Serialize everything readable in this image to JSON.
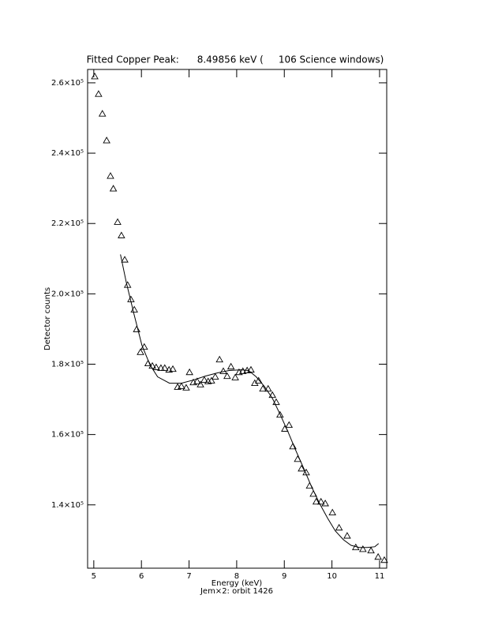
{
  "chart_data": {
    "type": "scatter",
    "title": "Fitted Copper Peak:      8.49856 keV (     106 Science windows)",
    "x_label": "Energy (keV)",
    "subtitle": "Jem×2: orbit 1426",
    "y_label": "Detector counts",
    "xlim": [
      4.87,
      11.15
    ],
    "xticks": [
      5,
      6,
      7,
      8,
      9,
      10,
      11
    ],
    "ylim": [
      122000,
      263800
    ],
    "yticks": [
      {
        "value": 140000,
        "label": "1.4×10⁵"
      },
      {
        "value": 160000,
        "label": "1.6×10⁵"
      },
      {
        "value": 180000,
        "label": "1.8×10⁵"
      },
      {
        "value": 200000,
        "label": "2.0×10⁵"
      },
      {
        "value": 220000,
        "label": "2.2×10⁵"
      },
      {
        "value": 240000,
        "label": "2.4×10⁵"
      },
      {
        "value": 260000,
        "label": "2.6×10⁵"
      }
    ],
    "series": [
      {
        "color": "#000000",
        "marker": "triangle",
        "x": [
          5.02,
          5.1,
          5.18,
          5.27,
          5.35,
          5.41,
          5.5,
          5.58,
          5.65,
          5.71,
          5.78,
          5.85,
          5.9,
          5.98,
          6.06,
          6.14,
          6.23,
          6.31,
          6.41,
          6.49,
          6.58,
          6.66,
          6.76,
          6.84,
          6.94,
          7.01,
          7.09,
          7.17,
          7.24,
          7.32,
          7.4,
          7.47,
          7.55,
          7.64,
          7.72,
          7.8,
          7.88,
          7.97,
          8.05,
          8.13,
          8.22,
          8.3,
          8.38,
          8.46,
          8.55,
          8.66,
          8.75,
          8.83,
          8.91,
          9.01,
          9.1,
          9.18,
          9.28,
          9.36,
          9.46,
          9.53,
          9.61,
          9.67,
          9.77,
          9.86,
          10.01,
          10.15,
          10.32,
          10.5,
          10.65,
          10.82,
          10.97,
          11.1
        ],
        "values": [
          261800,
          256800,
          251200,
          243600,
          233500,
          229900,
          220400,
          216600,
          209700,
          202500,
          198400,
          195500,
          189900,
          183400,
          184900,
          180200,
          179500,
          179100,
          178900,
          178900,
          178400,
          178600,
          173500,
          173700,
          173300,
          177700,
          174800,
          175100,
          174200,
          175500,
          175100,
          175300,
          176400,
          181300,
          178000,
          176600,
          179300,
          176200,
          177700,
          178000,
          178200,
          178400,
          174600,
          175300,
          173000,
          173000,
          171200,
          169200,
          165600,
          161600,
          162700,
          156600,
          153000,
          150300,
          149200,
          145400,
          143100,
          140900,
          140900,
          140400,
          137800,
          133500,
          131200,
          127900,
          127400,
          127000,
          125200,
          124300
        ]
      },
      {
        "color": "#000000",
        "marker": "none",
        "x": [
          5.56,
          5.68,
          5.85,
          6.01,
          6.18,
          6.34,
          6.59,
          6.84,
          7.09,
          7.34,
          7.59,
          7.84,
          8.09,
          8.25,
          8.41,
          8.58,
          8.75,
          8.91,
          9.08,
          9.24,
          9.41,
          9.57,
          9.74,
          9.91,
          10.07,
          10.24,
          10.4,
          10.57,
          10.74,
          10.9,
          10.98
        ],
        "values": [
          211200,
          203400,
          193900,
          185400,
          179800,
          176400,
          174600,
          174600,
          175500,
          176600,
          177500,
          178200,
          178400,
          178200,
          176400,
          173700,
          170300,
          165800,
          160700,
          155500,
          150300,
          145200,
          140400,
          136200,
          132600,
          130100,
          128500,
          127900,
          127900,
          128100,
          129000
        ]
      }
    ]
  }
}
